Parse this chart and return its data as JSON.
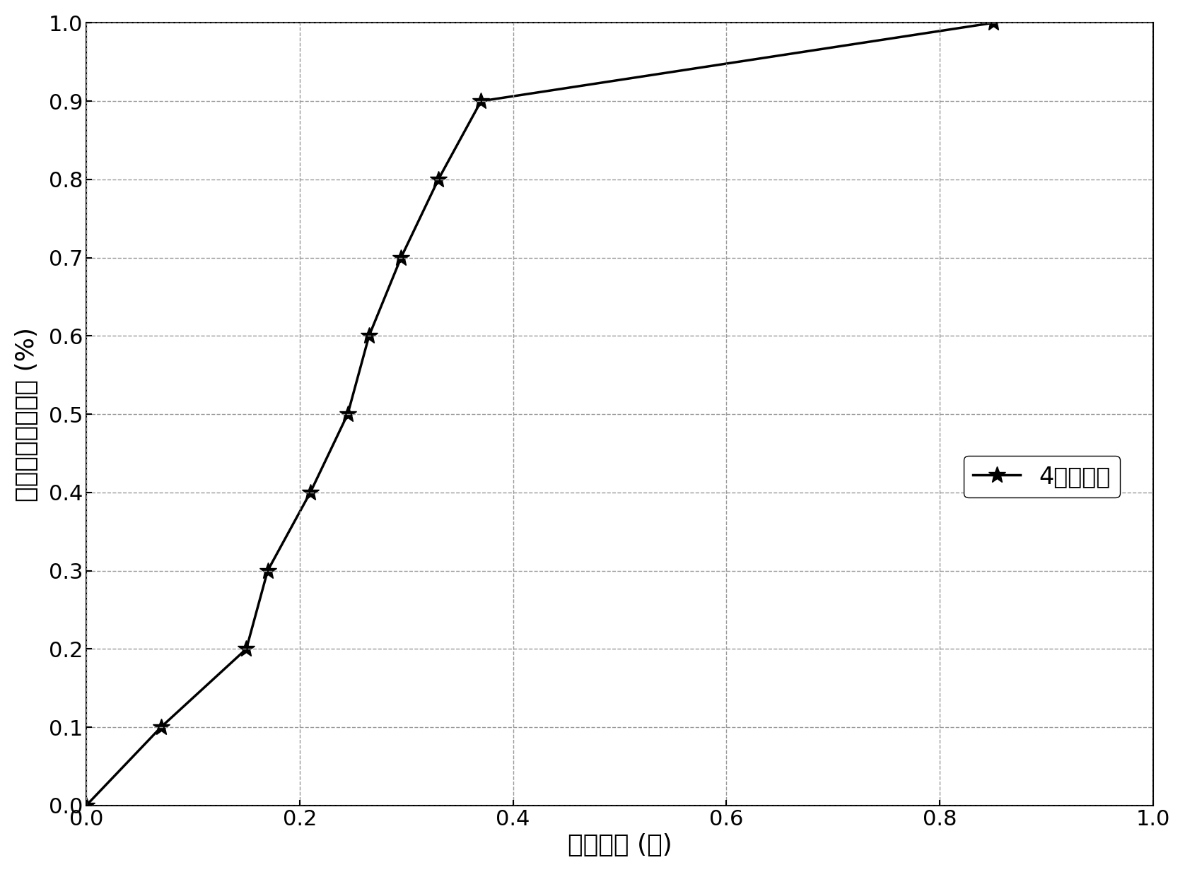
{
  "x": [
    0,
    0.07,
    0.15,
    0.17,
    0.21,
    0.245,
    0.265,
    0.295,
    0.33,
    0.37,
    0.85
  ],
  "y": [
    0,
    0.1,
    0.2,
    0.3,
    0.4,
    0.5,
    0.6,
    0.7,
    0.8,
    0.9,
    1.0
  ],
  "xlim": [
    0,
    1.0
  ],
  "ylim": [
    0,
    1.0
  ],
  "xlabel": "定位误差 (米)",
  "ylabel": "定位误差累积概率 (%)",
  "legend_label": "4个接收器",
  "line_color": "#000000",
  "marker": "*",
  "marker_size": 18,
  "line_width": 2.5,
  "xticks": [
    0,
    0.2,
    0.4,
    0.6,
    0.8,
    1.0
  ],
  "yticks": [
    0,
    0.1,
    0.2,
    0.3,
    0.4,
    0.5,
    0.6,
    0.7,
    0.8,
    0.9,
    1.0
  ],
  "grid_color": "#999999",
  "grid_style": "--",
  "background_color": "#ffffff",
  "xlabel_fontsize": 26,
  "ylabel_fontsize": 26,
  "tick_fontsize": 22,
  "legend_fontsize": 24
}
